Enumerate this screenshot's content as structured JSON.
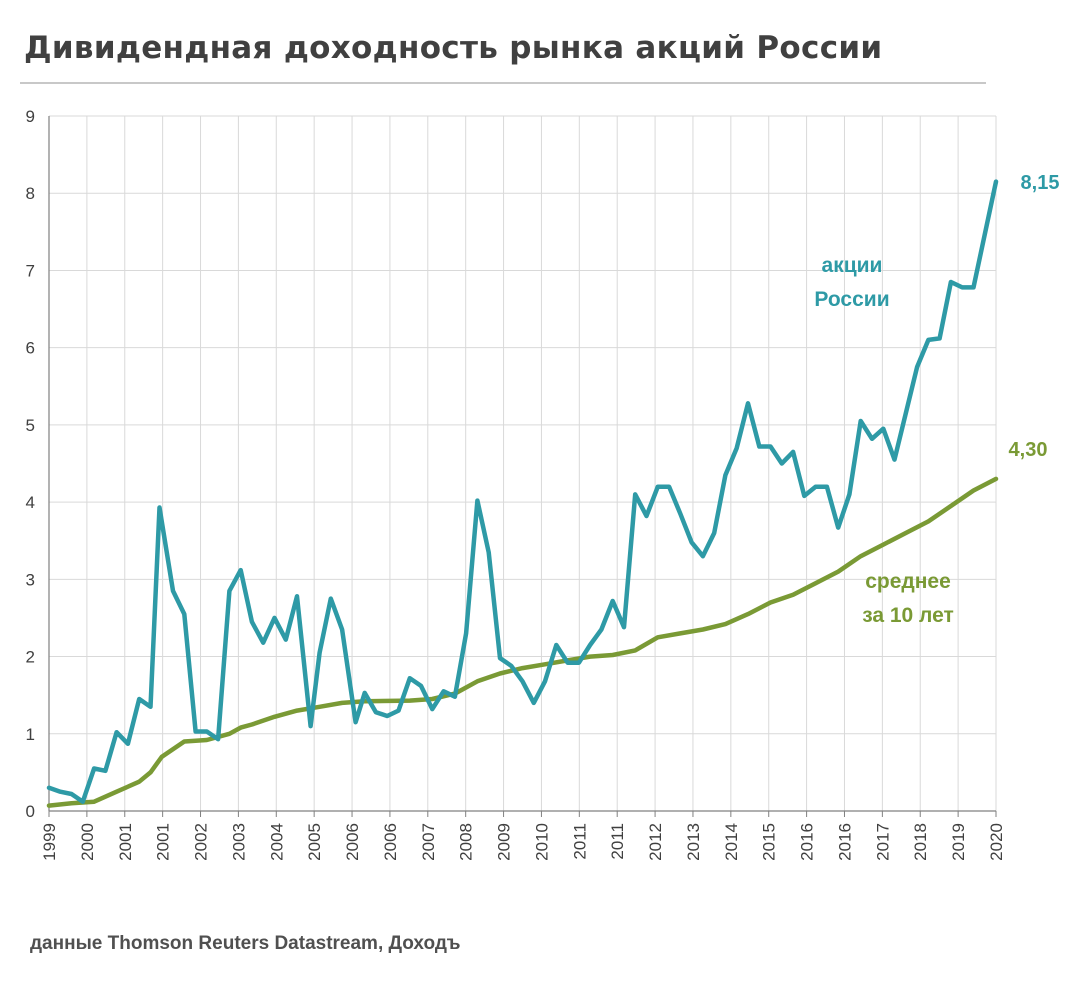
{
  "title": "Дивидендная доходность рынка акций России",
  "source": "данные Thomson Reuters Datastream, Доходъ",
  "chart_data": {
    "type": "line",
    "title": "Дивидендная доходность рынка акций России",
    "xlabel": "",
    "ylabel": "",
    "ylim": [
      0,
      9
    ],
    "xlim": [
      1999.0,
      2020.0
    ],
    "grid": true,
    "y_ticks": [
      "0",
      "1",
      "2",
      "3",
      "4",
      "5",
      "6",
      "7",
      "8",
      "9"
    ],
    "x_tick_labels": [
      "1999",
      "2000",
      "2001",
      "2001",
      "2002",
      "2003",
      "2004",
      "2005",
      "2006",
      "2006",
      "2007",
      "2008",
      "2009",
      "2010",
      "2011",
      "2011",
      "2012",
      "2013",
      "2014",
      "2015",
      "2016",
      "2016",
      "2017",
      "2018",
      "2019",
      "2020"
    ],
    "series": [
      {
        "name": "акции России",
        "color": "#2e9aa6",
        "end_label": "8,15",
        "points": [
          [
            1999.0,
            0.3
          ],
          [
            1999.25,
            0.25
          ],
          [
            1999.5,
            0.22
          ],
          [
            1999.75,
            0.12
          ],
          [
            2000.0,
            0.55
          ],
          [
            2000.25,
            0.52
          ],
          [
            2000.5,
            1.02
          ],
          [
            2000.75,
            0.87
          ],
          [
            2001.0,
            1.45
          ],
          [
            2001.25,
            1.35
          ],
          [
            2001.45,
            3.93
          ],
          [
            2001.75,
            2.85
          ],
          [
            2002.0,
            2.55
          ],
          [
            2002.25,
            1.03
          ],
          [
            2002.5,
            1.03
          ],
          [
            2002.75,
            0.93
          ],
          [
            2003.0,
            2.85
          ],
          [
            2003.25,
            3.12
          ],
          [
            2003.5,
            2.45
          ],
          [
            2003.75,
            2.18
          ],
          [
            2004.0,
            2.5
          ],
          [
            2004.25,
            2.22
          ],
          [
            2004.5,
            2.78
          ],
          [
            2004.8,
            1.1
          ],
          [
            2005.0,
            2.05
          ],
          [
            2005.25,
            2.75
          ],
          [
            2005.5,
            2.35
          ],
          [
            2005.8,
            1.15
          ],
          [
            2006.0,
            1.53
          ],
          [
            2006.25,
            1.28
          ],
          [
            2006.5,
            1.23
          ],
          [
            2006.75,
            1.3
          ],
          [
            2007.0,
            1.72
          ],
          [
            2007.25,
            1.62
          ],
          [
            2007.5,
            1.32
          ],
          [
            2007.75,
            1.55
          ],
          [
            2008.0,
            1.48
          ],
          [
            2008.25,
            2.3
          ],
          [
            2008.5,
            4.02
          ],
          [
            2008.75,
            3.35
          ],
          [
            2009.0,
            1.98
          ],
          [
            2009.25,
            1.88
          ],
          [
            2009.5,
            1.68
          ],
          [
            2009.75,
            1.4
          ],
          [
            2010.0,
            1.68
          ],
          [
            2010.25,
            2.15
          ],
          [
            2010.5,
            1.92
          ],
          [
            2010.75,
            1.92
          ],
          [
            2011.0,
            2.15
          ],
          [
            2011.25,
            2.35
          ],
          [
            2011.5,
            2.72
          ],
          [
            2011.75,
            2.38
          ],
          [
            2012.0,
            4.1
          ],
          [
            2012.25,
            3.82
          ],
          [
            2012.5,
            4.2
          ],
          [
            2012.75,
            4.2
          ],
          [
            2013.0,
            3.85
          ],
          [
            2013.25,
            3.48
          ],
          [
            2013.5,
            3.3
          ],
          [
            2013.75,
            3.6
          ],
          [
            2014.0,
            4.35
          ],
          [
            2014.25,
            4.7
          ],
          [
            2014.5,
            5.28
          ],
          [
            2014.75,
            4.72
          ],
          [
            2015.0,
            4.72
          ],
          [
            2015.25,
            4.5
          ],
          [
            2015.5,
            4.65
          ],
          [
            2015.75,
            4.08
          ],
          [
            2016.0,
            4.2
          ],
          [
            2016.25,
            4.2
          ],
          [
            2016.5,
            3.67
          ],
          [
            2016.75,
            4.1
          ],
          [
            2017.0,
            5.05
          ],
          [
            2017.25,
            4.82
          ],
          [
            2017.5,
            4.95
          ],
          [
            2017.75,
            4.55
          ],
          [
            2018.0,
            5.15
          ],
          [
            2018.25,
            5.75
          ],
          [
            2018.5,
            6.1
          ],
          [
            2018.75,
            6.12
          ],
          [
            2019.0,
            6.85
          ],
          [
            2019.25,
            6.78
          ],
          [
            2019.5,
            6.78
          ],
          [
            2020.0,
            8.15
          ]
        ]
      },
      {
        "name": "среднее за 10 лет",
        "color": "#7a9a35",
        "end_label": "4,30",
        "points": [
          [
            1999.0,
            0.07
          ],
          [
            1999.5,
            0.1
          ],
          [
            2000.0,
            0.12
          ],
          [
            2000.5,
            0.25
          ],
          [
            2001.0,
            0.38
          ],
          [
            2001.25,
            0.5
          ],
          [
            2001.5,
            0.7
          ],
          [
            2002.0,
            0.9
          ],
          [
            2002.5,
            0.92
          ],
          [
            2003.0,
            1.0
          ],
          [
            2003.25,
            1.08
          ],
          [
            2003.5,
            1.12
          ],
          [
            2004.0,
            1.22
          ],
          [
            2004.5,
            1.3
          ],
          [
            2005.0,
            1.35
          ],
          [
            2005.5,
            1.4
          ],
          [
            2006.0,
            1.42
          ],
          [
            2007.0,
            1.43
          ],
          [
            2007.5,
            1.45
          ],
          [
            2008.0,
            1.52
          ],
          [
            2008.5,
            1.68
          ],
          [
            2009.0,
            1.78
          ],
          [
            2009.5,
            1.85
          ],
          [
            2010.0,
            1.9
          ],
          [
            2010.5,
            1.95
          ],
          [
            2011.0,
            2.0
          ],
          [
            2011.5,
            2.02
          ],
          [
            2012.0,
            2.08
          ],
          [
            2012.5,
            2.25
          ],
          [
            2013.0,
            2.3
          ],
          [
            2013.5,
            2.35
          ],
          [
            2014.0,
            2.42
          ],
          [
            2014.5,
            2.55
          ],
          [
            2015.0,
            2.7
          ],
          [
            2015.5,
            2.8
          ],
          [
            2016.0,
            2.95
          ],
          [
            2016.5,
            3.1
          ],
          [
            2017.0,
            3.3
          ],
          [
            2017.5,
            3.45
          ],
          [
            2018.0,
            3.6
          ],
          [
            2018.5,
            3.75
          ],
          [
            2019.0,
            3.95
          ],
          [
            2019.5,
            4.15
          ],
          [
            2020.0,
            4.3
          ]
        ]
      }
    ],
    "annotations": [
      {
        "text_lines": [
          "акции",
          "России"
        ],
        "color": "#2e9aa6"
      },
      {
        "text_lines": [
          "среднее",
          "за 10 лет"
        ],
        "color": "#7a9a35"
      }
    ]
  }
}
